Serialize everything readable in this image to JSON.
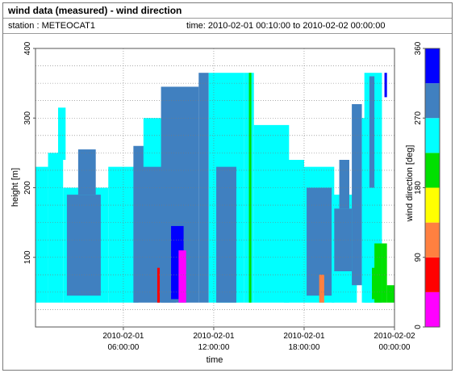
{
  "header": {
    "title": "wind data (measured) - wind direction",
    "station": "station : METEOCAT1",
    "time_range": "time: 2010-02-01 00:10:00 to 2010-02-02 00:00:00"
  },
  "chart_data": {
    "type": "heatmap",
    "title": "wind data (measured) - wind direction",
    "xlabel": "time",
    "ylabel": "height [m]",
    "colorbar_label": "wind direction [deg]",
    "xlim": [
      "2010-02-01 00:10",
      "2010-02-02 00:00"
    ],
    "ylim": [
      0,
      400
    ],
    "x_ticks": [
      {
        "time": "2010-02-01 06:00",
        "line1": "2010-02-01",
        "line2": "06:00:00"
      },
      {
        "time": "2010-02-01 12:00",
        "line1": "2010-02-01",
        "line2": "12:00:00"
      },
      {
        "time": "2010-02-01 18:00",
        "line1": "2010-02-01",
        "line2": "18:00:00"
      },
      {
        "time": "2010-02-02 00:00",
        "line1": "2010-02-02",
        "line2": "00:00:00"
      }
    ],
    "y_ticks": [
      100,
      200,
      300,
      400
    ],
    "colorbar_ticks": [
      0,
      90,
      180,
      270,
      360
    ],
    "grid": true,
    "color_scale": [
      {
        "from": 0,
        "to": 45,
        "color": "#ff00ff"
      },
      {
        "from": 45,
        "to": 90,
        "color": "#ff0000"
      },
      {
        "from": 90,
        "to": 135,
        "color": "#ff8040"
      },
      {
        "from": 135,
        "to": 180,
        "color": "#ffff00"
      },
      {
        "from": 180,
        "to": 225,
        "color": "#00e000"
      },
      {
        "from": 225,
        "to": 270,
        "color": "#00ffff"
      },
      {
        "from": 270,
        "to": 315,
        "color": "#4080c0"
      },
      {
        "from": 315,
        "to": 360,
        "color": "#0000ff"
      }
    ],
    "regions": [
      {
        "x": [
          "2010-02-01 00:10",
          "2010-02-01 01:00"
        ],
        "y": [
          35,
          230
        ],
        "dir": 250
      },
      {
        "x": [
          "2010-02-01 01:00",
          "2010-02-01 02:00"
        ],
        "y": [
          35,
          250
        ],
        "dir": 250
      },
      {
        "x": [
          "2010-02-01 01:40",
          "2010-02-01 02:10"
        ],
        "y": [
          240,
          315
        ],
        "dir": 250
      },
      {
        "x": [
          "2010-02-01 02:00",
          "2010-02-01 05:00"
        ],
        "y": [
          35,
          200
        ],
        "dir": 250
      },
      {
        "x": [
          "2010-02-01 02:15",
          "2010-02-01 04:30"
        ],
        "y": [
          45,
          190
        ],
        "dir": 290
      },
      {
        "x": [
          "2010-02-01 03:00",
          "2010-02-01 04:10"
        ],
        "y": [
          190,
          255
        ],
        "dir": 290
      },
      {
        "x": [
          "2010-02-01 05:00",
          "2010-02-01 07:00"
        ],
        "y": [
          35,
          230
        ],
        "dir": 250
      },
      {
        "x": [
          "2010-02-01 06:40",
          "2010-02-01 09:30"
        ],
        "y": [
          35,
          260
        ],
        "dir": 290
      },
      {
        "x": [
          "2010-02-01 07:20",
          "2010-02-01 08:40"
        ],
        "y": [
          230,
          300
        ],
        "dir": 250
      },
      {
        "x": [
          "2010-02-01 08:30",
          "2010-02-01 11:00"
        ],
        "y": [
          35,
          345
        ],
        "dir": 290
      },
      {
        "x": [
          "2010-02-01 09:10",
          "2010-02-01 10:00"
        ],
        "y": [
          40,
          145
        ],
        "dir": 340
      },
      {
        "x": [
          "2010-02-01 09:40",
          "2010-02-01 10:10"
        ],
        "y": [
          35,
          110
        ],
        "dir": 20
      },
      {
        "x": [
          "2010-02-01 08:15",
          "2010-02-01 08:25"
        ],
        "y": [
          35,
          85
        ],
        "dir": 70
      },
      {
        "x": [
          "2010-02-01 11:00",
          "2010-02-01 11:40"
        ],
        "y": [
          35,
          365
        ],
        "dir": 290
      },
      {
        "x": [
          "2010-02-01 11:40",
          "2010-02-01 14:00"
        ],
        "y": [
          35,
          365
        ],
        "dir": 250
      },
      {
        "x": [
          "2010-02-01 12:10",
          "2010-02-01 13:30"
        ],
        "y": [
          35,
          230
        ],
        "dir": 290
      },
      {
        "x": [
          "2010-02-01 14:00",
          "2010-02-01 14:40"
        ],
        "y": [
          35,
          365
        ],
        "dir": 250
      },
      {
        "x": [
          "2010-02-01 14:20",
          "2010-02-01 14:30"
        ],
        "y": [
          35,
          365
        ],
        "dir": 200
      },
      {
        "x": [
          "2010-02-01 14:40",
          "2010-02-01 17:00"
        ],
        "y": [
          35,
          290
        ],
        "dir": 250
      },
      {
        "x": [
          "2010-02-01 16:40",
          "2010-02-01 18:00"
        ],
        "y": [
          35,
          240
        ],
        "dir": 250
      },
      {
        "x": [
          "2010-02-01 18:00",
          "2010-02-01 20:00"
        ],
        "y": [
          35,
          230
        ],
        "dir": 250
      },
      {
        "x": [
          "2010-02-01 18:10",
          "2010-02-01 19:50"
        ],
        "y": [
          45,
          200
        ],
        "dir": 290
      },
      {
        "x": [
          "2010-02-01 19:50",
          "2010-02-01 21:30"
        ],
        "y": [
          35,
          190
        ],
        "dir": 250
      },
      {
        "x": [
          "2010-02-01 20:00",
          "2010-02-01 21:10"
        ],
        "y": [
          80,
          170
        ],
        "dir": 290
      },
      {
        "x": [
          "2010-02-01 20:20",
          "2010-02-01 21:00"
        ],
        "y": [
          170,
          240
        ],
        "dir": 290
      },
      {
        "x": [
          "2010-02-01 21:10",
          "2010-02-01 21:50"
        ],
        "y": [
          60,
          320
        ],
        "dir": 290
      },
      {
        "x": [
          "2010-02-01 21:50",
          "2010-02-01 22:30"
        ],
        "y": [
          35,
          300
        ],
        "dir": 250
      },
      {
        "x": [
          "2010-02-01 22:00",
          "2010-02-01 23:10"
        ],
        "y": [
          35,
          365
        ],
        "dir": 250
      },
      {
        "x": [
          "2010-02-01 22:40",
          "2010-02-01 23:10"
        ],
        "y": [
          35,
          120
        ],
        "dir": 200
      },
      {
        "x": [
          "2010-02-01 22:30",
          "2010-02-01 22:50"
        ],
        "y": [
          40,
          85
        ],
        "dir": 200
      },
      {
        "x": [
          "2010-02-01 22:20",
          "2010-02-01 22:40"
        ],
        "y": [
          200,
          360
        ],
        "dir": 290
      },
      {
        "x": [
          "2010-02-01 23:10",
          "2010-02-01 23:30"
        ],
        "y": [
          35,
          120
        ],
        "dir": 200
      },
      {
        "x": [
          "2010-02-01 23:20",
          "2010-02-01 23:30"
        ],
        "y": [
          330,
          365
        ],
        "dir": 330
      },
      {
        "x": [
          "2010-02-01 23:30",
          "2010-02-02 00:00"
        ],
        "y": [
          35,
          60
        ],
        "dir": 200
      },
      {
        "x": [
          "2010-02-01 19:00",
          "2010-02-01 19:20"
        ],
        "y": [
          35,
          75
        ],
        "dir": 100
      }
    ]
  }
}
